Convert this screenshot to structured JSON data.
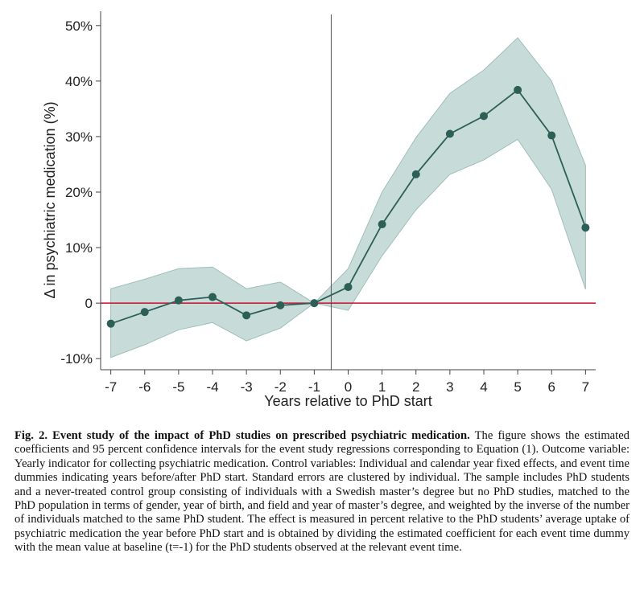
{
  "chart_data": {
    "type": "line",
    "title": "",
    "xlabel": "Years relative to PhD start",
    "ylabel": "Δ in psychiatric medication (%)",
    "x": [
      -7,
      -6,
      -5,
      -4,
      -3,
      -2,
      -1,
      0,
      1,
      2,
      3,
      4,
      5,
      6,
      7
    ],
    "xticks": [
      "-7",
      "-6",
      "-5",
      "-4",
      "-3",
      "-2",
      "-1",
      "0",
      "1",
      "2",
      "3",
      "4",
      "5",
      "6",
      "7"
    ],
    "yticks": [
      {
        "value": 50,
        "label": "50%"
      },
      {
        "value": 40,
        "label": "40%"
      },
      {
        "value": 30,
        "label": "30%"
      },
      {
        "value": 20,
        "label": "20%"
      },
      {
        "value": 10,
        "label": "10%"
      },
      {
        "value": 0,
        "label": "0"
      },
      {
        "value": -10,
        "label": "-10%"
      }
    ],
    "xlim": [
      -7.3,
      7.3
    ],
    "ylim": [
      -12,
      52
    ],
    "reference_vline": -0.5,
    "reference_hline": 0,
    "series": [
      {
        "values": [
          -3.7,
          -1.6,
          0.5,
          1.1,
          -2.2,
          -0.4,
          0.0,
          2.9,
          14.2,
          23.2,
          30.5,
          33.7,
          38.4,
          30.2,
          13.6
        ],
        "ci_lower": [
          -9.8,
          -7.5,
          -4.8,
          -3.5,
          -6.8,
          -4.5,
          0.0,
          -1.3,
          8.5,
          16.8,
          23.2,
          25.8,
          29.5,
          20.5,
          2.5
        ],
        "ci_upper": [
          2.6,
          4.3,
          6.2,
          6.5,
          2.6,
          3.8,
          0.0,
          6.2,
          20.0,
          29.8,
          37.8,
          42.0,
          47.8,
          40.0,
          24.8
        ]
      }
    ],
    "colors": {
      "line": "#2c5f56",
      "ci_band": "#c7dbd8",
      "ci_band_edge": "#9fbfba",
      "zero_line": "#c8102e",
      "vline": "#555555"
    },
    "grid": false
  },
  "caption": {
    "title": "Fig. 2. Event study of the impact of PhD studies on prescribed psychiatric medication.",
    "text": " The figure shows the estimated coefficients and 95 percent confidence intervals for the event study regressions corresponding to Equation (1). Outcome variable: Yearly indicator for collecting psychiatric medication. Control variables: Individual and calendar year fixed effects, and event time dummies indicating years before/after PhD start. Standard errors are clustered by individual. The sample includes PhD students and a never-treated control group consisting of individuals with a Swedish master’s degree but no PhD studies, matched to the PhD population in terms of gender, year of birth, and field and year of master’s degree, and weighted by the inverse of the number of individuals matched to the same PhD student. The effect is measured in percent relative to the PhD students’ average uptake of psychiatric medication the year before PhD start and is obtained by dividing the estimated coefficient for each event time dummy with the mean value at baseline (t=-1) for the PhD students observed at the relevant event time."
  }
}
